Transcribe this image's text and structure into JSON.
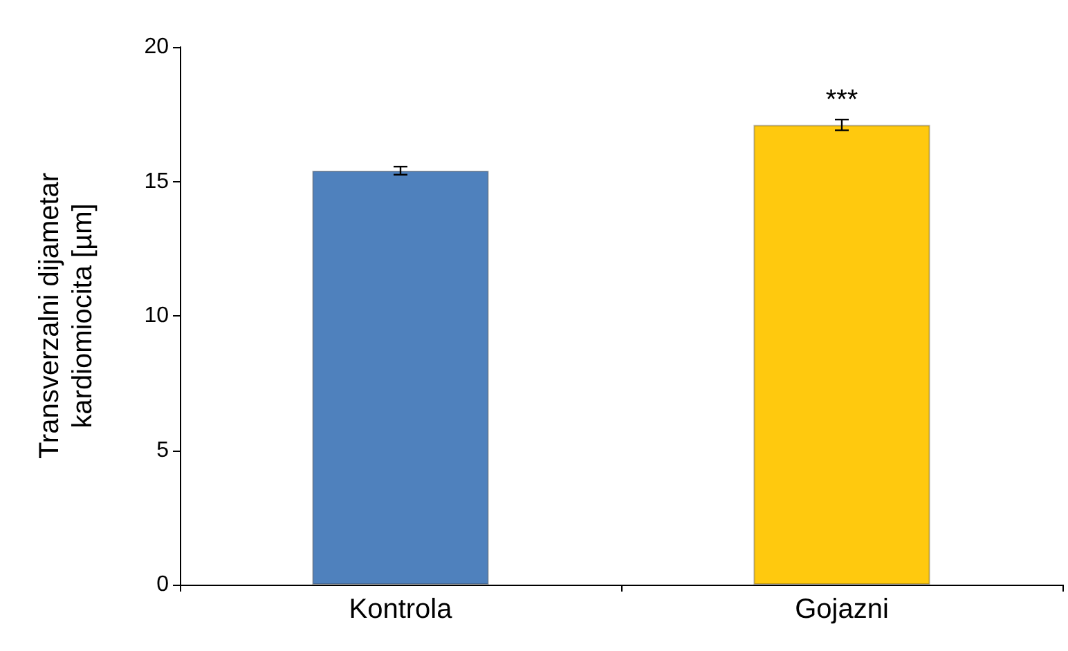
{
  "chart_data": {
    "type": "bar",
    "ylabel": "Transverzalni dijametar\nkardiomiocita [µm]",
    "categories": [
      "Kontrola",
      "Gojazni"
    ],
    "values": [
      15.4,
      17.1
    ],
    "colors": [
      "#4f81bd",
      "#ffc90e"
    ],
    "errors": [
      0.15,
      0.2
    ],
    "ylim": [
      0,
      20
    ],
    "yticks": [
      0,
      5,
      10,
      15,
      20
    ],
    "grid": false,
    "annotations": [
      "***"
    ]
  }
}
